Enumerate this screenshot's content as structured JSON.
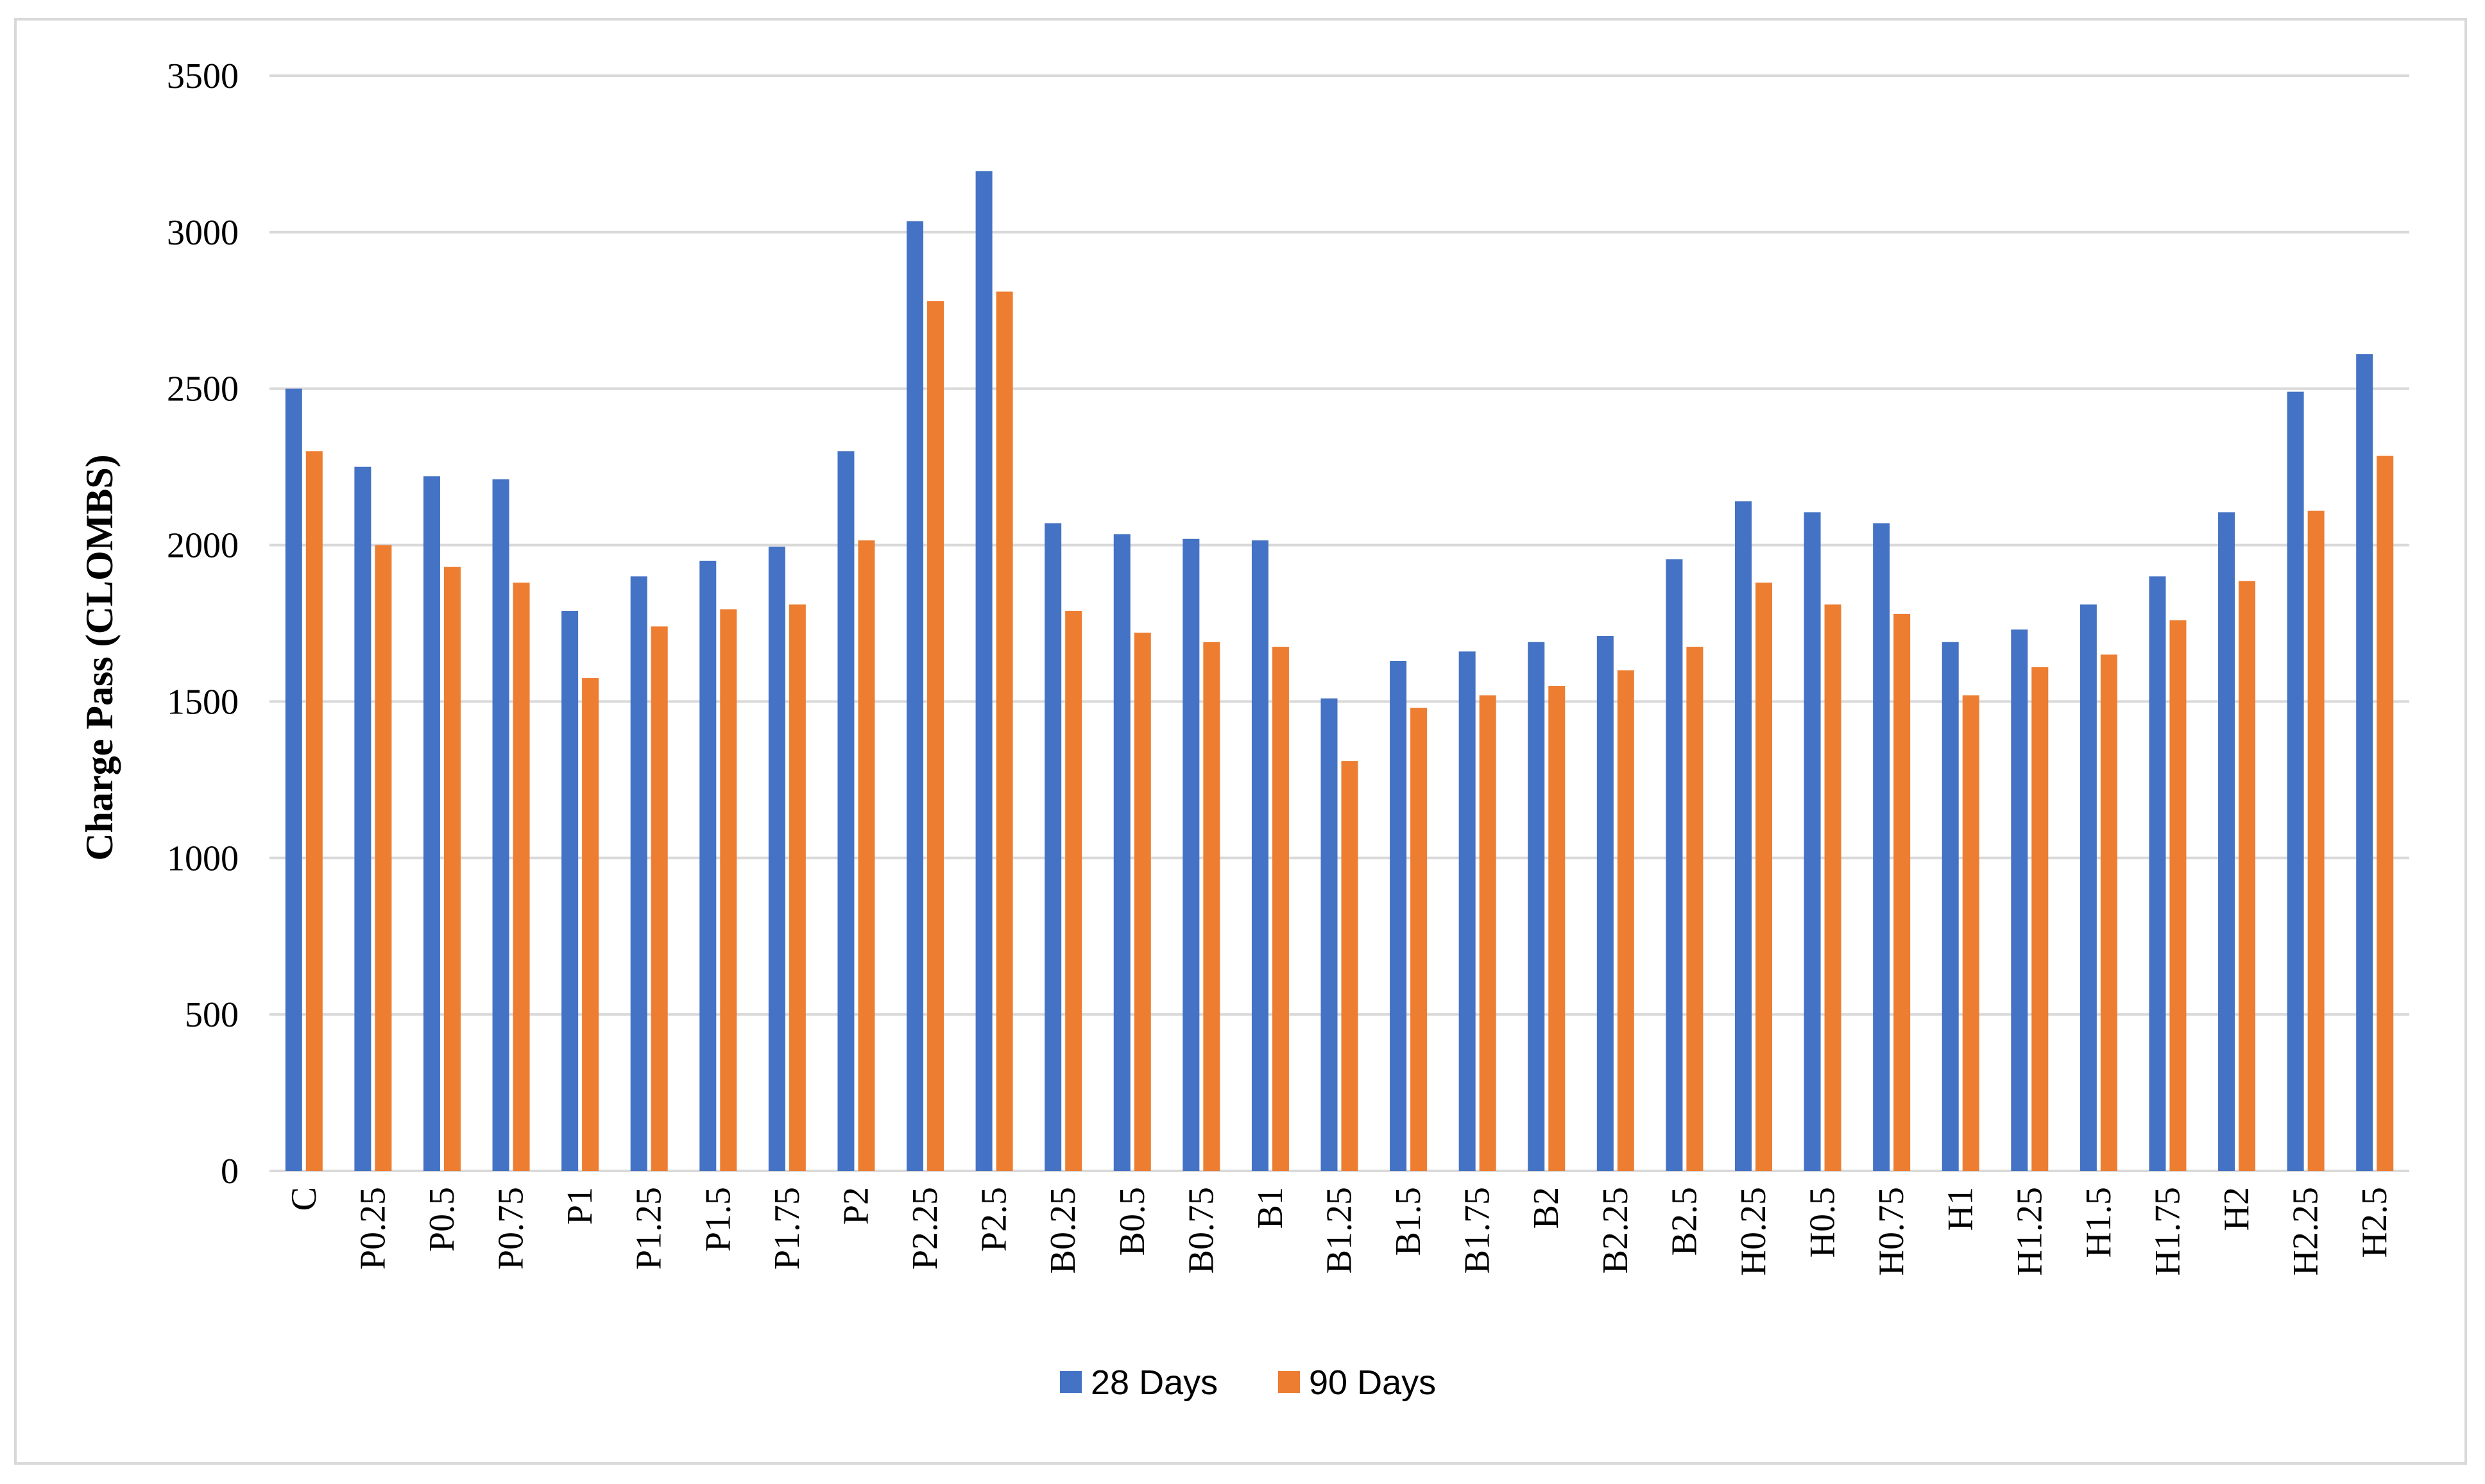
{
  "chart_data": {
    "type": "bar",
    "title": "",
    "xlabel": "",
    "ylabel": "Charge Pass (CLOMBS)",
    "ylim": [
      0,
      3500
    ],
    "yticks": [
      0,
      500,
      1000,
      1500,
      2000,
      2500,
      3000,
      3500
    ],
    "grid": true,
    "legend_position": "bottom",
    "categories": [
      "C",
      "P0.25",
      "P0.5",
      "P0.75",
      "P1",
      "P1.25",
      "P1.5",
      "P1.75",
      "P2",
      "P2.25",
      "P2.5",
      "B0.25",
      "B0.5",
      "B0.75",
      "B1",
      "B1.25",
      "B1.5",
      "B1.75",
      "B2",
      "B2.25",
      "B2.5",
      "H0.25",
      "H0.5",
      "H0.75",
      "H1",
      "H1.25",
      "H1.5",
      "H1.75",
      "H2",
      "H2.25",
      "H2.5"
    ],
    "series": [
      {
        "name": "28 Days",
        "color": "#4472c4",
        "values": [
          2500,
          2250,
          2220,
          2210,
          1790,
          1900,
          1950,
          1995,
          2300,
          3035,
          3195,
          2070,
          2035,
          2020,
          2015,
          1510,
          1630,
          1660,
          1690,
          1710,
          1955,
          2140,
          2105,
          2070,
          1690,
          1730,
          1810,
          1900,
          2105,
          2490,
          2610
        ]
      },
      {
        "name": "90 Days",
        "color": "#ed7d31",
        "values": [
          2300,
          2000,
          1930,
          1880,
          1575,
          1740,
          1795,
          1810,
          2015,
          2780,
          2810,
          1790,
          1720,
          1690,
          1675,
          1310,
          1480,
          1520,
          1550,
          1600,
          1675,
          1880,
          1810,
          1780,
          1520,
          1610,
          1650,
          1760,
          1885,
          2110,
          2285
        ]
      }
    ]
  }
}
